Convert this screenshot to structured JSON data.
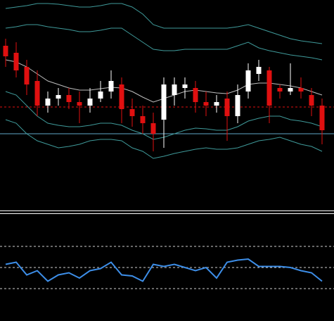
{
  "chart_data": [
    {
      "type": "candlestick",
      "ylim": [
        0,
        300
      ],
      "up_color": "#ffffff",
      "down_color": "#e01010",
      "open": [
        235,
        225,
        205,
        185,
        150,
        160,
        165,
        155,
        150,
        160,
        170,
        180,
        145,
        135,
        125,
        130,
        165,
        175,
        175,
        155,
        150,
        160,
        135,
        170,
        195,
        200,
        175,
        170,
        175,
        165,
        150
      ],
      "close": [
        220,
        200,
        180,
        150,
        160,
        165,
        155,
        150,
        160,
        170,
        185,
        145,
        135,
        125,
        110,
        180,
        180,
        180,
        155,
        150,
        155,
        135,
        165,
        200,
        205,
        150,
        170,
        175,
        170,
        150,
        115
      ],
      "high": [
        245,
        240,
        215,
        200,
        170,
        175,
        175,
        170,
        175,
        185,
        200,
        190,
        160,
        150,
        140,
        190,
        190,
        190,
        185,
        170,
        165,
        170,
        180,
        210,
        215,
        205,
        180,
        210,
        190,
        175,
        160
      ],
      "low": [
        205,
        190,
        165,
        135,
        140,
        150,
        145,
        125,
        140,
        155,
        160,
        125,
        120,
        110,
        85,
        90,
        150,
        160,
        140,
        135,
        140,
        100,
        125,
        160,
        185,
        125,
        160,
        165,
        160,
        135,
        95
      ],
      "series": [
        {
          "color": "#3f9a9a",
          "values": [
            288,
            290,
            292,
            295,
            295,
            294,
            292,
            290,
            290,
            292,
            295,
            295,
            290,
            280,
            265,
            260,
            260,
            260,
            260,
            260,
            260,
            260,
            262,
            265,
            260,
            255,
            250,
            245,
            242,
            240,
            238
          ]
        },
        {
          "color": "#3f9a9a",
          "values": [
            260,
            262,
            265,
            265,
            262,
            260,
            258,
            255,
            255,
            257,
            260,
            260,
            250,
            240,
            230,
            228,
            228,
            230,
            230,
            230,
            230,
            230,
            235,
            240,
            232,
            228,
            225,
            222,
            220,
            218,
            215
          ]
        },
        {
          "color": "#bdbdbd",
          "values": [
            215,
            212,
            205,
            195,
            185,
            180,
            175,
            172,
            172,
            174,
            176,
            175,
            170,
            162,
            155,
            160,
            165,
            170,
            172,
            170,
            168,
            167,
            172,
            180,
            182,
            182,
            180,
            178,
            175,
            170,
            165
          ]
        },
        {
          "color": "#3f9a9a",
          "values": [
            170,
            165,
            150,
            135,
            125,
            122,
            120,
            120,
            122,
            125,
            125,
            122,
            115,
            110,
            102,
            105,
            110,
            115,
            118,
            117,
            115,
            115,
            120,
            128,
            132,
            135,
            135,
            130,
            128,
            125,
            120
          ]
        },
        {
          "color": "#3f9a9a",
          "values": [
            130,
            125,
            110,
            100,
            95,
            90,
            92,
            95,
            100,
            102,
            102,
            100,
            90,
            85,
            75,
            78,
            82,
            85,
            88,
            90,
            88,
            88,
            90,
            95,
            100,
            102,
            105,
            100,
            95,
            92,
            85
          ]
        }
      ],
      "hlines": [
        {
          "value": 148,
          "color": "#e01010",
          "style": "dashed"
        },
        {
          "value": 110,
          "color": "#5fa8c8",
          "style": "solid"
        }
      ]
    },
    {
      "type": "line",
      "ylim": [
        0,
        100
      ],
      "series": [
        {
          "color": "#3d8ee8",
          "values": [
            53,
            55,
            43,
            47,
            37,
            43,
            45,
            40,
            47,
            49,
            55,
            43,
            42,
            37,
            53,
            51,
            53,
            50,
            47,
            50,
            40,
            55,
            57,
            58,
            51,
            51,
            51,
            50,
            47,
            45,
            37
          ]
        }
      ],
      "hlines": [
        {
          "value": 70,
          "color": "#cfcfcf",
          "style": "dashed"
        },
        {
          "value": 50,
          "color": "#cfcfcf",
          "style": "dashed"
        },
        {
          "value": 30,
          "color": "#cfcfcf",
          "style": "dashed"
        }
      ]
    }
  ]
}
